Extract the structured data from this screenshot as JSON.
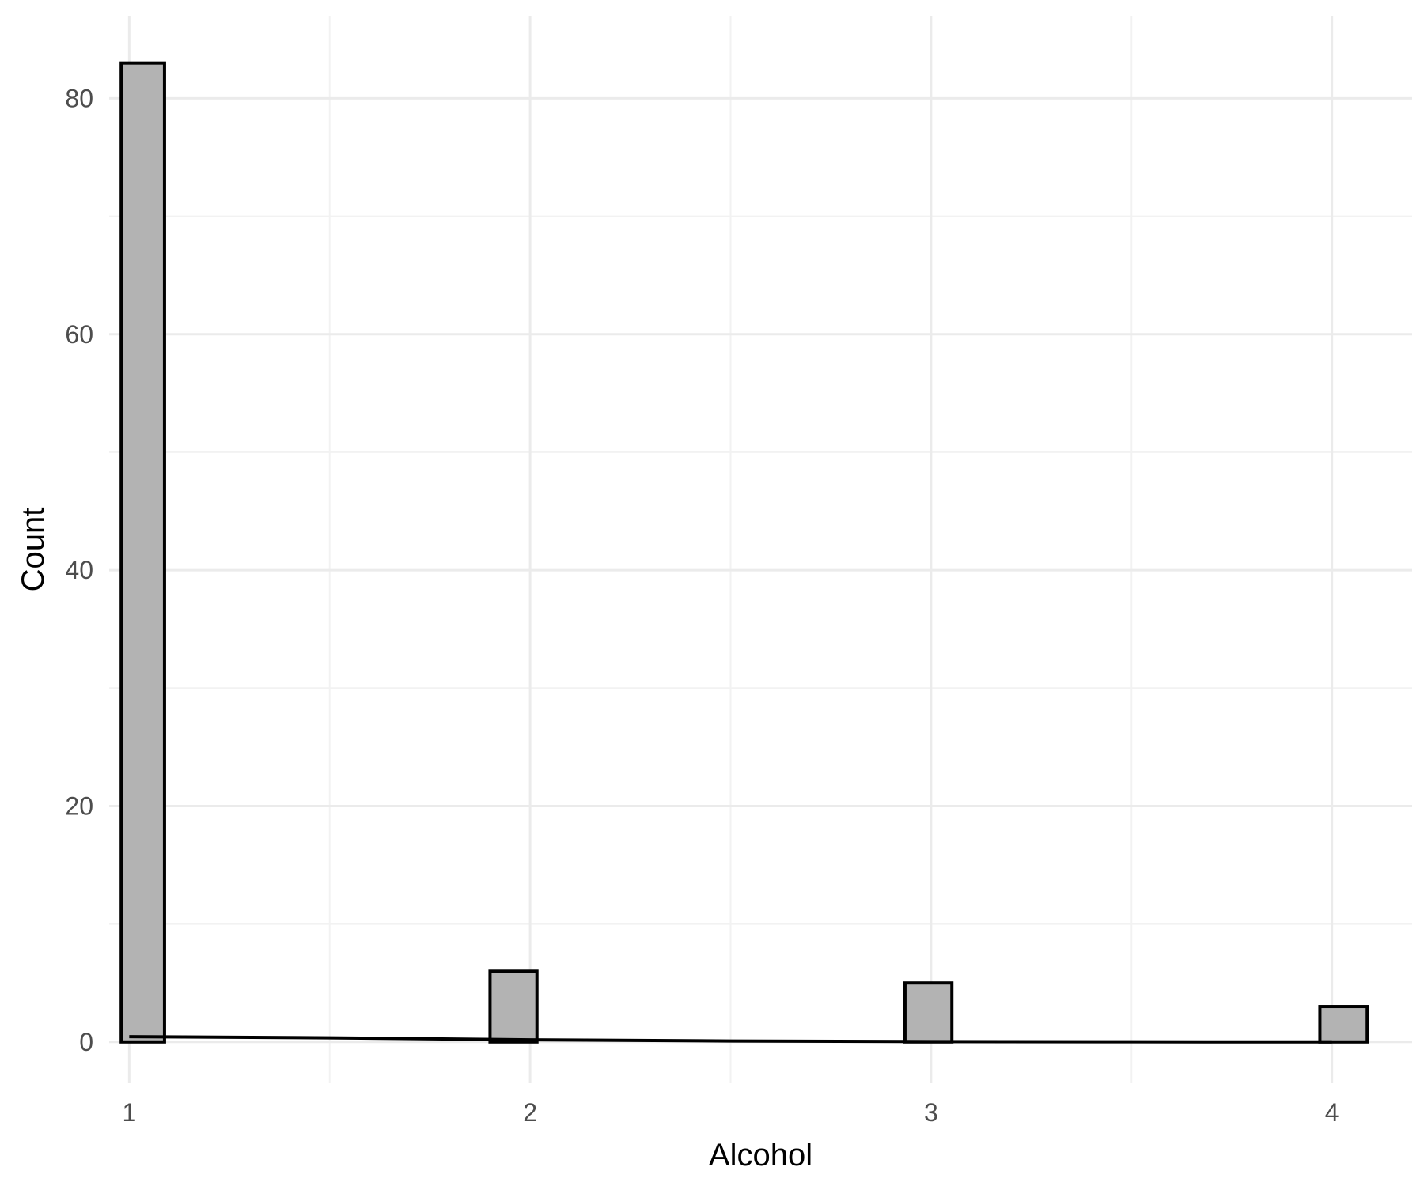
{
  "chart_data": {
    "type": "bar",
    "subtype": "histogram",
    "title": "",
    "xlabel": "Alcohol",
    "ylabel": "Count",
    "xlim": [
      0.95,
      4.2
    ],
    "ylim": [
      -3.5,
      87
    ],
    "x_ticks": [
      1,
      2,
      3,
      4
    ],
    "x_minor_ticks": [
      1.5,
      2.5,
      3.5
    ],
    "y_ticks": [
      0,
      20,
      40,
      60,
      80
    ],
    "y_minor_ticks": [
      10,
      30,
      50,
      70
    ],
    "grid": true,
    "legend": "none",
    "bins": [
      {
        "x_start": 0.98,
        "x_end": 1.088,
        "count": 83
      },
      {
        "x_start": 1.9,
        "x_end": 2.017,
        "count": 6
      },
      {
        "x_start": 2.935,
        "x_end": 3.052,
        "count": 5
      },
      {
        "x_start": 3.97,
        "x_end": 4.088,
        "count": 3
      }
    ],
    "density_line": {
      "x": [
        1.0,
        1.5,
        2.0,
        2.5,
        3.0,
        3.5,
        4.0
      ],
      "y": [
        0.45,
        0.35,
        0.18,
        0.08,
        0.03,
        0.01,
        0.0
      ]
    },
    "colors": {
      "bar_fill": "#b3b3b3",
      "bar_stroke": "#000000",
      "major_grid": "#ebebeb",
      "minor_grid": "#f2f2f2",
      "density_line": "#000000"
    }
  }
}
